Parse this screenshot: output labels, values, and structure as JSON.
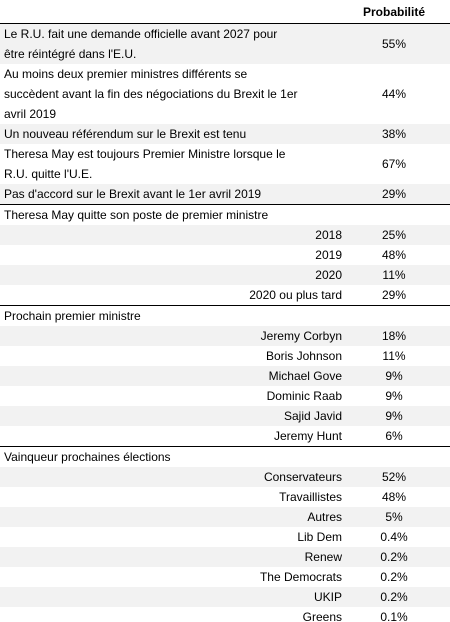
{
  "header": {
    "value_column": "Probabilité"
  },
  "main_rows": [
    {
      "lines": [
        "Le R.U. fait une demande officielle avant 2027 pour",
        "être réintégré dans l'E.U."
      ],
      "value": "55%"
    },
    {
      "lines": [
        "Au moins deux premier ministres différents se",
        "succèdent avant la fin des négociations du Brexit le 1er",
        "avril 2019"
      ],
      "value": "44%"
    },
    {
      "lines": [
        "Un nouveau référendum sur le Brexit est tenu"
      ],
      "value": "38%"
    },
    {
      "lines": [
        "Theresa May est toujours Premier Ministre lorsque le",
        "R.U. quitte l'U.E."
      ],
      "value": "67%"
    },
    {
      "lines": [
        "Pas d'accord sur le Brexit avant le 1er avril 2019"
      ],
      "value": "29%"
    }
  ],
  "sections": [
    {
      "title": "Theresa May quitte son poste de premier ministre",
      "items": [
        {
          "label": "2018",
          "value": "25%"
        },
        {
          "label": "2019",
          "value": "48%"
        },
        {
          "label": "2020",
          "value": "11%"
        },
        {
          "label": "2020 ou plus tard",
          "value": "29%"
        }
      ]
    },
    {
      "title": "Prochain premier ministre",
      "items": [
        {
          "label": "Jeremy Corbyn",
          "value": "18%"
        },
        {
          "label": "Boris Johnson",
          "value": "11%"
        },
        {
          "label": "Michael Gove",
          "value": "9%"
        },
        {
          "label": "Dominic Raab",
          "value": "9%"
        },
        {
          "label": "Sajid Javid",
          "value": "9%"
        },
        {
          "label": "Jeremy Hunt",
          "value": "6%"
        }
      ]
    },
    {
      "title": "Vainqueur prochaines élections",
      "items": [
        {
          "label": "Conservateurs",
          "value": "52%"
        },
        {
          "label": "Travaillistes",
          "value": "48%"
        },
        {
          "label": "Autres",
          "value": "5%"
        },
        {
          "label": "Lib Dem",
          "value": "0.4%"
        },
        {
          "label": "Renew",
          "value": "0.2%"
        },
        {
          "label": "The Democrats",
          "value": "0.2%"
        },
        {
          "label": "UKIP",
          "value": "0.2%"
        },
        {
          "label": "Greens",
          "value": "0.1%"
        }
      ]
    }
  ]
}
